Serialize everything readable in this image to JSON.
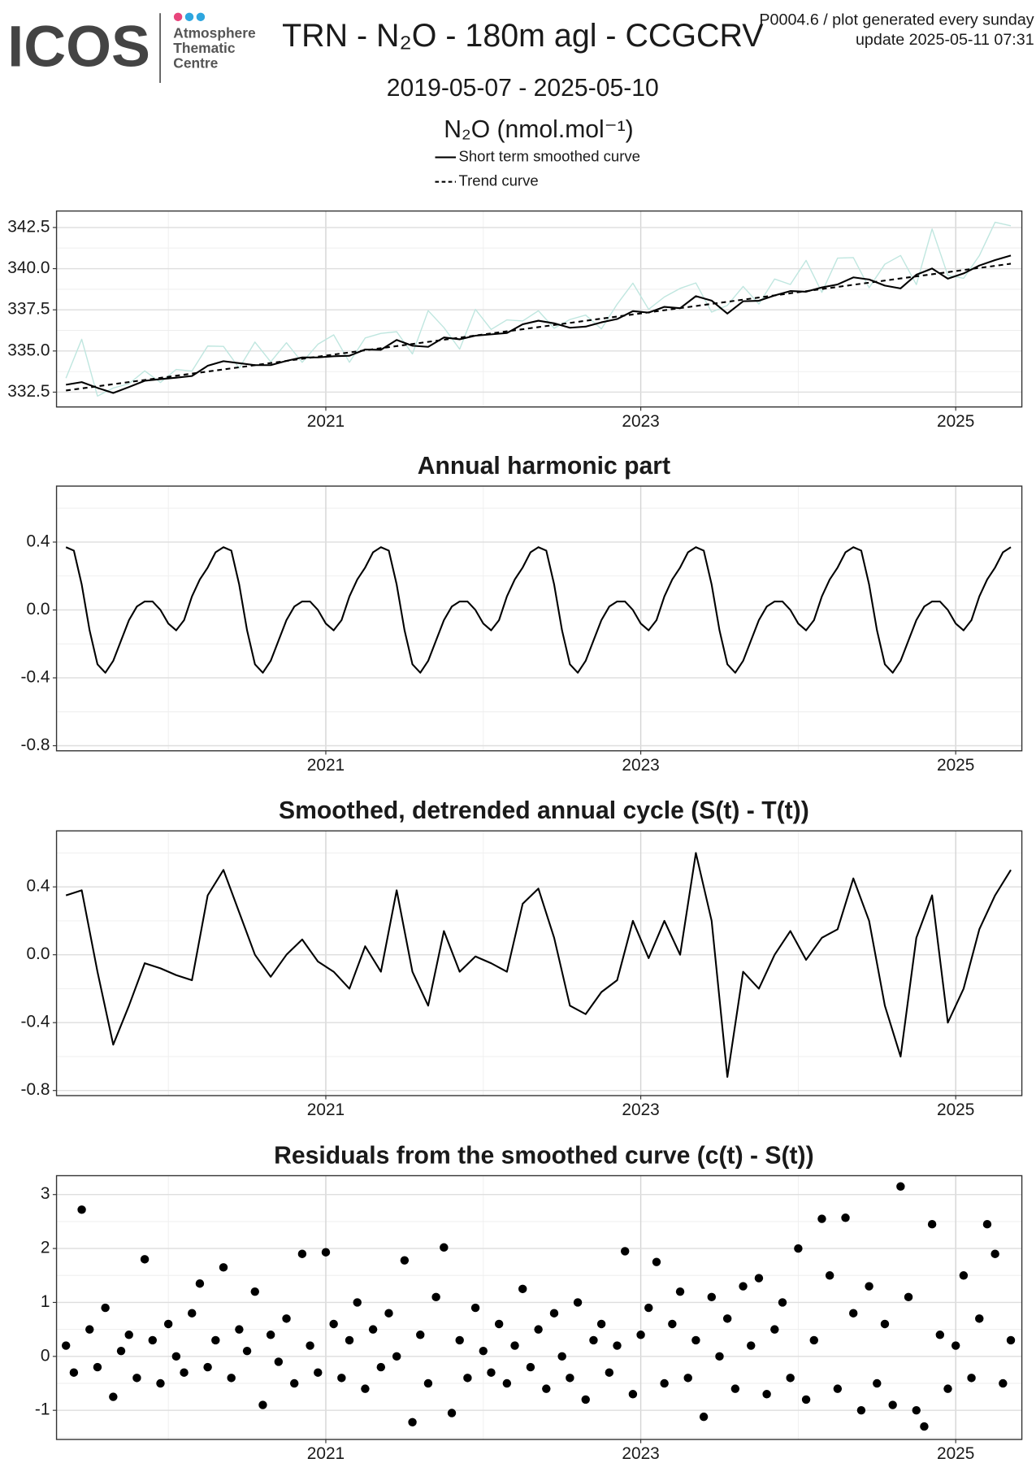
{
  "header": {
    "logo": "ICOS",
    "logo_lines": [
      "Atmosphere",
      "Thematic",
      "Centre"
    ],
    "title": "TRN - N₂O - 180m agl - CCGCRV",
    "info": [
      "P0004.6 / plot generated every sunday",
      "update  2025-05-11 07:31"
    ],
    "subtitle": "2019-05-07 - 2025-05-10"
  },
  "chart_data": [
    {
      "type": "line",
      "ylabel": "N₂O (nmol.mol⁻¹)",
      "legend": "top",
      "xlim": [
        2019.29,
        2025.42
      ],
      "xticks": [
        2021,
        2023,
        2025
      ],
      "ylim": [
        331.6,
        343.5
      ],
      "yticks": [
        332.5,
        {
          "value": 335,
          "label": "335.0"
        },
        337.5,
        {
          "value": 340,
          "label": "340.0"
        },
        342.5
      ],
      "grid": true,
      "series": [
        {
          "color": "#bfe6df",
          "x": [
            2019.35,
            2019.45,
            2019.55,
            2019.65,
            2019.75,
            2019.85,
            2019.95,
            2020.05,
            2020.15,
            2020.25,
            2020.35,
            2020.45,
            2020.55,
            2020.65,
            2020.75,
            2020.85,
            2020.95,
            2021.05,
            2021.15,
            2021.25,
            2021.35,
            2021.45,
            2021.55,
            2021.65,
            2021.75,
            2021.85,
            2021.95,
            2022.05,
            2022.15,
            2022.25,
            2022.35,
            2022.45,
            2022.55,
            2022.65,
            2022.75,
            2022.85,
            2022.95,
            2023.05,
            2023.15,
            2023.25,
            2023.35,
            2023.45,
            2023.55,
            2023.65,
            2023.75,
            2023.85,
            2023.95,
            2024.05,
            2024.15,
            2024.25,
            2024.35,
            2024.45,
            2024.55,
            2024.65,
            2024.75,
            2024.85,
            2024.95,
            2025.05,
            2025.15,
            2025.25,
            2025.35
          ],
          "values": [
            333.35,
            335.71,
            332.26,
            332.75,
            333.01,
            333.79,
            333.09,
            333.88,
            333.78,
            335.3,
            335.28,
            333.96,
            335.54,
            334.34,
            335.5,
            334.31,
            335.41,
            335.98,
            334.31,
            335.79,
            336.07,
            336.17,
            334.82,
            337.45,
            336.42,
            335.11,
            337.53,
            336.31,
            336.89,
            336.82,
            337.44,
            336.38,
            336.91,
            337.18,
            336.34,
            337.84,
            339.12,
            337.53,
            338.28,
            338.8,
            339.13,
            337.36,
            337.77,
            338.92,
            337.85,
            339.37,
            339.04,
            340.5,
            338.56,
            340.64,
            340.67,
            338.84,
            340.27,
            340.8,
            339.03,
            342.41,
            339.59,
            339.41,
            340.79,
            342.82,
            342.6
          ]
        },
        {
          "name": "Short term smoothed curve",
          "color": "#000000",
          "x": [
            2019.35,
            2019.45,
            2019.55,
            2019.65,
            2019.75,
            2019.85,
            2019.95,
            2020.05,
            2020.15,
            2020.25,
            2020.35,
            2020.45,
            2020.55,
            2020.65,
            2020.75,
            2020.85,
            2020.95,
            2021.05,
            2021.15,
            2021.25,
            2021.35,
            2021.45,
            2021.55,
            2021.65,
            2021.75,
            2021.85,
            2021.95,
            2022.05,
            2022.15,
            2022.25,
            2022.35,
            2022.45,
            2022.55,
            2022.65,
            2022.75,
            2022.85,
            2022.95,
            2023.05,
            2023.15,
            2023.25,
            2023.35,
            2023.45,
            2023.55,
            2023.65,
            2023.75,
            2023.85,
            2023.95,
            2024.05,
            2024.15,
            2024.25,
            2024.35,
            2024.45,
            2024.55,
            2024.65,
            2024.75,
            2024.85,
            2024.95,
            2025.05,
            2025.15,
            2025.25,
            2025.35
          ],
          "values": [
            332.95,
            333.11,
            332.76,
            332.45,
            332.81,
            333.19,
            333.29,
            333.38,
            333.48,
            334.1,
            334.38,
            334.26,
            334.14,
            334.14,
            334.4,
            334.61,
            334.61,
            334.68,
            334.71,
            335.09,
            335.07,
            335.67,
            335.32,
            335.25,
            335.82,
            335.71,
            335.93,
            336.01,
            336.09,
            336.62,
            336.84,
            336.68,
            336.41,
            336.48,
            336.74,
            336.94,
            337.42,
            337.33,
            337.68,
            337.6,
            338.33,
            338.06,
            337.27,
            338.02,
            338.05,
            338.37,
            338.64,
            338.6,
            338.86,
            339.04,
            339.47,
            339.34,
            338.97,
            338.8,
            339.63,
            340.01,
            339.39,
            339.71,
            340.19,
            340.52,
            340.8
          ]
        },
        {
          "name": "Trend curve",
          "color": "#000000",
          "dash": true,
          "x": [
            2019.35,
            2020.35,
            2021.35,
            2022.35,
            2023.35,
            2024.35,
            2025.35
          ],
          "values": [
            332.6,
            333.88,
            335.17,
            336.45,
            337.73,
            339.02,
            340.3
          ]
        }
      ]
    },
    {
      "type": "line",
      "title": "Annual harmonic part",
      "xlim": [
        2019.29,
        2025.42
      ],
      "xticks": [
        2021,
        2023,
        2025
      ],
      "ylim": [
        -0.83,
        0.73
      ],
      "yticks": [
        -0.8,
        -0.4,
        {
          "value": 0,
          "label": "0.0"
        },
        0.4
      ],
      "grid": true,
      "series": [
        {
          "color": "#000000",
          "x": [
            2019.35,
            2019.4,
            2019.45,
            2019.5,
            2019.55,
            2019.6,
            2019.65,
            2019.7,
            2019.75,
            2019.8,
            2019.85,
            2019.9,
            2019.95,
            2020,
            2020.05,
            2020.1,
            2020.15,
            2020.2,
            2020.25,
            2020.3,
            2020.35,
            2020.4,
            2020.45,
            2020.5,
            2020.55,
            2020.6,
            2020.65,
            2020.7,
            2020.75,
            2020.8,
            2020.85,
            2020.9,
            2020.95,
            2021,
            2021.05,
            2021.1,
            2021.15,
            2021.2,
            2021.25,
            2021.3,
            2021.35,
            2021.4,
            2021.45,
            2021.5,
            2021.55,
            2021.6,
            2021.65,
            2021.7,
            2021.75,
            2021.8,
            2021.85,
            2021.9,
            2021.95,
            2022,
            2022.05,
            2022.1,
            2022.15,
            2022.2,
            2022.25,
            2022.3,
            2022.35,
            2022.4,
            2022.45,
            2022.5,
            2022.55,
            2022.6,
            2022.65,
            2022.7,
            2022.75,
            2022.8,
            2022.85,
            2022.9,
            2022.95,
            2023,
            2023.05,
            2023.1,
            2023.15,
            2023.2,
            2023.25,
            2023.3,
            2023.35,
            2023.4,
            2023.45,
            2023.5,
            2023.55,
            2023.6,
            2023.65,
            2023.7,
            2023.75,
            2023.8,
            2023.85,
            2023.9,
            2023.95,
            2024,
            2024.05,
            2024.1,
            2024.15,
            2024.2,
            2024.25,
            2024.3,
            2024.35,
            2024.4,
            2024.45,
            2024.5,
            2024.55,
            2024.6,
            2024.65,
            2024.7,
            2024.75,
            2024.8,
            2024.85,
            2024.9,
            2024.95,
            2025,
            2025.05,
            2025.1,
            2025.15,
            2025.2,
            2025.25,
            2025.3,
            2025.35
          ],
          "values": [
            0.37,
            0.35,
            0.15,
            -0.12,
            -0.32,
            -0.37,
            -0.3,
            -0.18,
            -0.06,
            0.02,
            0.05,
            0.05,
            0.0,
            -0.08,
            -0.12,
            -0.06,
            0.08,
            0.18,
            0.25,
            0.34,
            0.37,
            0.35,
            0.15,
            -0.12,
            -0.32,
            -0.37,
            -0.3,
            -0.18,
            -0.06,
            0.02,
            0.05,
            0.05,
            0.0,
            -0.08,
            -0.12,
            -0.06,
            0.08,
            0.18,
            0.25,
            0.34,
            0.37,
            0.35,
            0.15,
            -0.12,
            -0.32,
            -0.37,
            -0.3,
            -0.18,
            -0.06,
            0.02,
            0.05,
            0.05,
            0.0,
            -0.08,
            -0.12,
            -0.06,
            0.08,
            0.18,
            0.25,
            0.34,
            0.37,
            0.35,
            0.15,
            -0.12,
            -0.32,
            -0.37,
            -0.3,
            -0.18,
            -0.06,
            0.02,
            0.05,
            0.05,
            0.0,
            -0.08,
            -0.12,
            -0.06,
            0.08,
            0.18,
            0.25,
            0.34,
            0.37,
            0.35,
            0.15,
            -0.12,
            -0.32,
            -0.37,
            -0.3,
            -0.18,
            -0.06,
            0.02,
            0.05,
            0.05,
            0.0,
            -0.08,
            -0.12,
            -0.06,
            0.08,
            0.18,
            0.25,
            0.34,
            0.37,
            0.35,
            0.15,
            -0.12,
            -0.32,
            -0.37,
            -0.3,
            -0.18,
            -0.06,
            0.02,
            0.05,
            0.05,
            0.0,
            -0.08,
            -0.12,
            -0.06,
            0.08,
            0.18,
            0.25,
            0.34,
            0.37
          ]
        }
      ]
    },
    {
      "type": "line",
      "title": "Smoothed, detrended annual cycle (S(t) - T(t))",
      "xlim": [
        2019.29,
        2025.42
      ],
      "xticks": [
        2021,
        2023,
        2025
      ],
      "ylim": [
        -0.83,
        0.73
      ],
      "yticks": [
        -0.8,
        -0.4,
        {
          "value": 0,
          "label": "0.0"
        },
        0.4
      ],
      "grid": true,
      "series": [
        {
          "color": "#000000",
          "x": [
            2019.35,
            2019.45,
            2019.55,
            2019.65,
            2019.75,
            2019.85,
            2019.95,
            2020.05,
            2020.15,
            2020.25,
            2020.35,
            2020.45,
            2020.55,
            2020.65,
            2020.75,
            2020.85,
            2020.95,
            2021.05,
            2021.15,
            2021.25,
            2021.35,
            2021.45,
            2021.55,
            2021.65,
            2021.75,
            2021.85,
            2021.95,
            2022.05,
            2022.15,
            2022.25,
            2022.35,
            2022.45,
            2022.55,
            2022.65,
            2022.75,
            2022.85,
            2022.95,
            2023.05,
            2023.15,
            2023.25,
            2023.35,
            2023.45,
            2023.55,
            2023.65,
            2023.75,
            2023.85,
            2023.95,
            2024.05,
            2024.15,
            2024.25,
            2024.35,
            2024.45,
            2024.55,
            2024.65,
            2024.75,
            2024.85,
            2024.95,
            2025.05,
            2025.15,
            2025.25,
            2025.35
          ],
          "values": [
            0.35,
            0.38,
            -0.1,
            -0.53,
            -0.3,
            -0.05,
            -0.08,
            -0.12,
            -0.15,
            0.35,
            0.5,
            0.25,
            0.0,
            -0.13,
            0.0,
            0.09,
            -0.04,
            -0.1,
            -0.2,
            0.05,
            -0.1,
            0.38,
            -0.1,
            -0.3,
            0.14,
            -0.1,
            -0.01,
            -0.05,
            -0.1,
            0.3,
            0.39,
            0.1,
            -0.3,
            -0.35,
            -0.22,
            -0.15,
            0.2,
            -0.02,
            0.2,
            0.0,
            0.6,
            0.2,
            -0.72,
            -0.1,
            -0.2,
            0.0,
            0.14,
            -0.03,
            0.1,
            0.15,
            0.45,
            0.2,
            -0.3,
            -0.6,
            0.1,
            0.35,
            -0.4,
            -0.2,
            0.15,
            0.35,
            0.5
          ]
        }
      ]
    },
    {
      "type": "scatter",
      "title": "Residuals from the smoothed curve (c(t) - S(t))",
      "xlim": [
        2019.29,
        2025.42
      ],
      "xticks": [
        2021,
        2023,
        2025
      ],
      "ylim": [
        -1.54,
        3.35
      ],
      "yticks": [
        -1,
        0,
        1,
        2,
        3
      ],
      "grid": true,
      "series": [
        {
          "color": "#000000",
          "x": [
            2019.35,
            2019.4,
            2019.45,
            2019.5,
            2019.55,
            2019.6,
            2019.65,
            2019.7,
            2019.75,
            2019.8,
            2019.85,
            2019.9,
            2019.95,
            2020,
            2020.05,
            2020.1,
            2020.15,
            2020.2,
            2020.25,
            2020.3,
            2020.35,
            2020.4,
            2020.45,
            2020.5,
            2020.55,
            2020.6,
            2020.65,
            2020.7,
            2020.75,
            2020.8,
            2020.85,
            2020.9,
            2020.95,
            2021,
            2021.05,
            2021.1,
            2021.15,
            2021.2,
            2021.25,
            2021.3,
            2021.35,
            2021.4,
            2021.45,
            2021.5,
            2021.55,
            2021.6,
            2021.65,
            2021.7,
            2021.75,
            2021.8,
            2021.85,
            2021.9,
            2021.95,
            2022,
            2022.05,
            2022.1,
            2022.15,
            2022.2,
            2022.25,
            2022.3,
            2022.35,
            2022.4,
            2022.45,
            2022.5,
            2022.55,
            2022.6,
            2022.65,
            2022.7,
            2022.75,
            2022.8,
            2022.85,
            2022.9,
            2022.95,
            2023,
            2023.05,
            2023.1,
            2023.15,
            2023.2,
            2023.25,
            2023.3,
            2023.35,
            2023.4,
            2023.45,
            2023.5,
            2023.55,
            2023.6,
            2023.65,
            2023.7,
            2023.75,
            2023.8,
            2023.85,
            2023.9,
            2023.95,
            2024,
            2024.05,
            2024.1,
            2024.15,
            2024.2,
            2024.25,
            2024.3,
            2024.35,
            2024.4,
            2024.45,
            2024.5,
            2024.55,
            2024.6,
            2024.65,
            2024.7,
            2024.75,
            2024.8,
            2024.85,
            2024.9,
            2024.95,
            2025,
            2025.05,
            2025.1,
            2025.15,
            2025.2,
            2025.25,
            2025.3,
            2025.35
          ],
          "values": [
            0.2,
            -0.3,
            2.72,
            0.5,
            -0.2,
            0.9,
            -0.75,
            0.1,
            0.4,
            -0.4,
            1.8,
            0.3,
            -0.5,
            0.6,
            0.0,
            -0.3,
            0.8,
            1.35,
            -0.2,
            0.3,
            1.65,
            -0.4,
            0.5,
            0.1,
            1.2,
            -0.9,
            0.4,
            -0.1,
            0.7,
            -0.5,
            1.9,
            0.2,
            -0.3,
            1.93,
            0.6,
            -0.4,
            0.3,
            1.0,
            -0.6,
            0.5,
            -0.2,
            0.8,
            0.0,
            1.78,
            -1.22,
            0.4,
            -0.5,
            1.1,
            2.02,
            -1.05,
            0.3,
            -0.4,
            0.9,
            0.1,
            -0.3,
            0.6,
            -0.5,
            0.2,
            1.25,
            -0.2,
            0.5,
            -0.6,
            0.8,
            0.0,
            -0.4,
            1.0,
            -0.8,
            0.3,
            0.6,
            -0.3,
            0.2,
            1.95,
            -0.7,
            0.4,
            0.9,
            1.75,
            -0.5,
            0.6,
            1.2,
            -0.4,
            0.3,
            -1.12,
            1.1,
            0.0,
            0.7,
            -0.6,
            1.3,
            0.2,
            1.45,
            -0.7,
            0.5,
            1.0,
            -0.4,
            2.0,
            -0.8,
            0.3,
            2.55,
            1.5,
            -0.6,
            2.57,
            0.8,
            -1.0,
            1.3,
            -0.5,
            0.6,
            -0.9,
            3.15,
            1.1,
            -1.0,
            -1.3,
            2.45,
            0.4,
            -0.6,
            0.2,
            1.5,
            -0.4,
            0.7,
            2.45,
            1.9,
            -0.5,
            0.3
          ]
        }
      ]
    }
  ]
}
